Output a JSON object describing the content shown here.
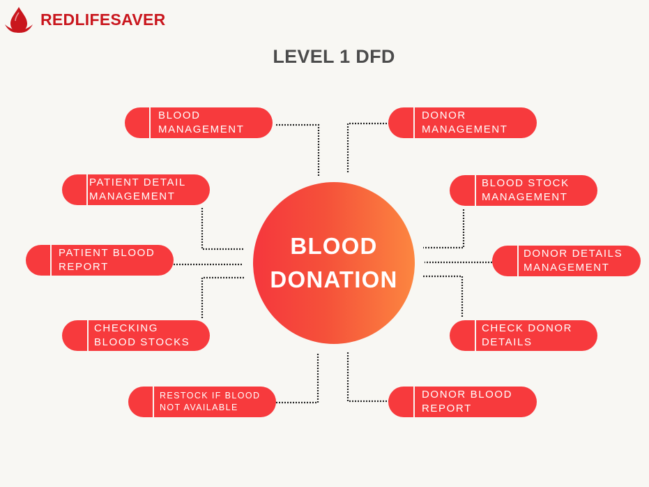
{
  "brand": {
    "name": "REDLIFESAVER",
    "logo_icon": "blood-drop-icon",
    "brand_color": "#c9161d"
  },
  "title": "LEVEL 1 DFD",
  "center": {
    "line1": "BLOOD",
    "line2": "DONATION"
  },
  "colors": {
    "node": "#f73a3d",
    "background": "#f8f7f3",
    "connector": "#222222"
  },
  "nodes": [
    {
      "label": "BLOOD\nMANAGEMENT"
    },
    {
      "label": "DONOR\nMANAGEMENT"
    },
    {
      "label": "PATIENT DETAIL\nMANAGEMENT"
    },
    {
      "label": "BLOOD STOCK\nMANAGEMENT"
    },
    {
      "label": "PATIENT BLOOD\nREPORT"
    },
    {
      "label": "DONOR DETAILS\nMANAGEMENT"
    },
    {
      "label": "CHECKING\nBLOOD STOCKS"
    },
    {
      "label": "CHECK DONOR\nDETAILS"
    },
    {
      "label": "RESTOCK IF BLOOD\nNOT AVAILABLE"
    },
    {
      "label": "DONOR BLOOD\nREPORT"
    }
  ]
}
